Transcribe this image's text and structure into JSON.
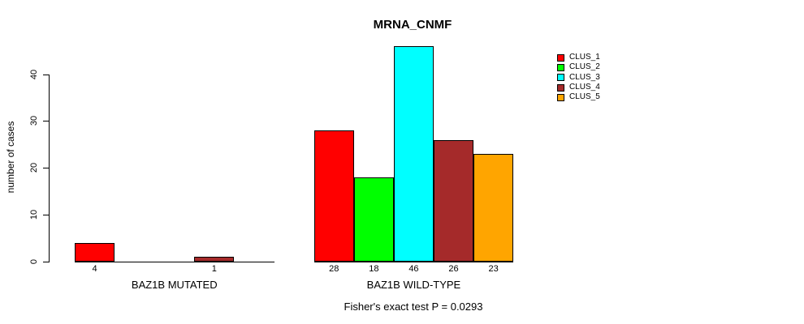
{
  "chart_data": {
    "type": "bar",
    "title": "MRNA_CNMF",
    "ylabel": "number of cases",
    "xlabel": "",
    "ylim": [
      0,
      46
    ],
    "yticks": [
      0,
      10,
      20,
      30,
      40
    ],
    "grid": false,
    "legend_position": "top-right",
    "series_labels": [
      "CLUS_1",
      "CLUS_2",
      "CLUS_3",
      "CLUS_4",
      "CLUS_5"
    ],
    "series_colors": [
      "#ff0000",
      "#00ff00",
      "#00ffff",
      "#a52a2a",
      "#ffa500"
    ],
    "groups": [
      {
        "label": "BAZ1B MUTATED",
        "values": [
          4,
          0,
          0,
          1,
          0
        ]
      },
      {
        "label": "BAZ1B WILD-TYPE",
        "values": [
          28,
          18,
          46,
          26,
          23
        ]
      }
    ],
    "value_labels_shown": [
      "4",
      "1",
      "28",
      "18",
      "46",
      "26",
      "23"
    ],
    "annotation": "Fisher's exact test P = 0.0293"
  }
}
